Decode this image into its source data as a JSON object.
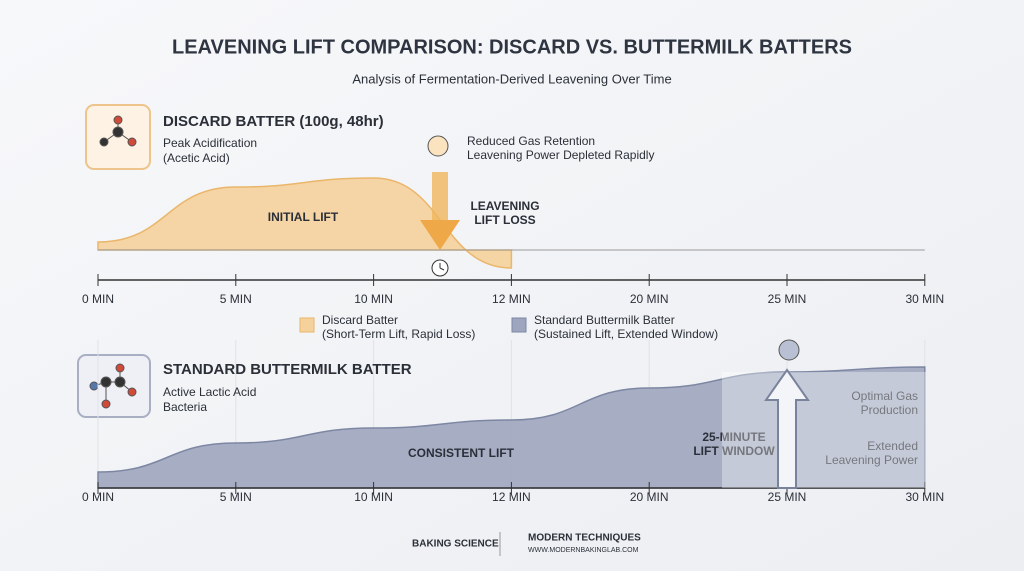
{
  "title": "LEAVENING LIFT COMPARISON: DISCARD VS. BUTTERMILK BATTERS",
  "subtitle": "Analysis of Fermentation-Derived Leavening Over Time",
  "chart_data": [
    {
      "type": "area",
      "title": "DISCARD BATTER (100g, 48hr)",
      "subtitle": [
        "Peak Acidification",
        "(Acetic Acid)"
      ],
      "categories": [
        "0 MIN",
        "5 MIN",
        "10 MIN",
        "12 MIN",
        "20 MIN",
        "25 MIN",
        "30 MIN"
      ],
      "series": [
        {
          "name": [
            "Discard Batter",
            "(Short-Term Lift, Rapid Loss)"
          ],
          "color": "#f5d19b",
          "values": [
            8,
            63,
            72,
            -18,
            null,
            null,
            null
          ]
        }
      ],
      "ylim": [
        -30,
        100
      ],
      "annotations": [
        [
          "INITIAL LIFT"
        ],
        [
          "LEAVENING",
          "LIFT LOSS"
        ],
        [
          "Reduced Gas Retention",
          "Leavening Power Depleted Rapidly"
        ]
      ]
    },
    {
      "type": "area",
      "title": "STANDARD BUTTERMILK BATTER",
      "subtitle": [
        "Active Lactic Acid",
        "Bacteria"
      ],
      "categories": [
        "0 MIN",
        "5 MIN",
        "10 MIN",
        "12 MIN",
        "20 MIN",
        "25 MIN",
        "30 MIN"
      ],
      "series": [
        {
          "name": [
            "Standard Buttermilk Batter",
            "(Sustained Lift, Extended Window)"
          ],
          "color": "#9ea6bf",
          "values": [
            16,
            45,
            60,
            68,
            100,
            116,
            121
          ]
        }
      ],
      "ylim": [
        0,
        130
      ],
      "annotations": [
        [
          "CONSISTENT LIFT"
        ],
        [
          "25-MINUTE",
          "LIFT WINDOW"
        ],
        [
          "Optimal Gas",
          "Production"
        ],
        [
          "Extended",
          "Leavening Power"
        ]
      ]
    }
  ],
  "footer": {
    "left": "BAKING SCIENCE",
    "right": "MODERN TECHNIQUES",
    "url": "WWW.MODERNBAKINGLAB.COM"
  }
}
